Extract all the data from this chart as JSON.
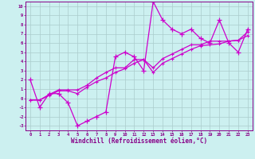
{
  "xlabel": "Windchill (Refroidissement éolien,°C)",
  "x_values": [
    0,
    1,
    2,
    3,
    4,
    5,
    6,
    7,
    8,
    9,
    10,
    11,
    12,
    13,
    14,
    15,
    16,
    17,
    18,
    19,
    20,
    21,
    22,
    23
  ],
  "line1_y": [
    2,
    -1,
    0.5,
    0.5,
    -0.5,
    -3,
    -2.5,
    -2,
    -1.5,
    4.5,
    5,
    4.5,
    3,
    10.5,
    8.5,
    7.5,
    7,
    7.5,
    6.5,
    6,
    8.5,
    6,
    5,
    7.5
  ],
  "line2_y": [
    -0.2,
    -0.2,
    0.3,
    0.8,
    0.8,
    0.5,
    1.2,
    1.8,
    2.2,
    2.8,
    3.2,
    3.8,
    4.2,
    2.8,
    3.8,
    4.3,
    4.8,
    5.3,
    5.7,
    5.8,
    5.9,
    6.2,
    6.3,
    6.8
  ],
  "line3_y": [
    -0.2,
    -0.2,
    0.4,
    0.9,
    0.9,
    0.9,
    1.4,
    2.2,
    2.8,
    3.3,
    3.3,
    4.2,
    4.2,
    3.3,
    4.3,
    4.8,
    5.3,
    5.8,
    5.8,
    6.2,
    6.2,
    6.2,
    6.3,
    7.2
  ],
  "line_color": "#CC00CC",
  "bg_color": "#CCF0F0",
  "grid_color": "#AACCCC",
  "xlim": [
    -0.5,
    23.5
  ],
  "ylim": [
    -3.5,
    10.5
  ],
  "xticks": [
    0,
    1,
    2,
    3,
    4,
    5,
    6,
    7,
    8,
    9,
    10,
    11,
    12,
    13,
    14,
    15,
    16,
    17,
    18,
    19,
    20,
    21,
    22,
    23
  ],
  "yticks": [
    10,
    9,
    8,
    7,
    6,
    5,
    4,
    3,
    2,
    1,
    0,
    -1,
    -2,
    -3
  ]
}
